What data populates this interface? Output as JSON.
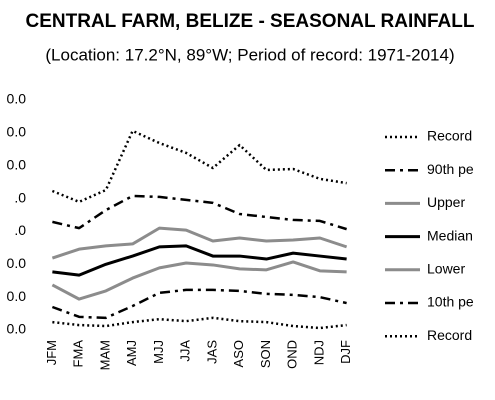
{
  "chart_data": {
    "type": "line",
    "title": "CENTRAL FARM, BELIZE - SEASONAL RAINFALL",
    "subtitle": "(Location: 17.2°N, 89°W; Period of record: 1971-2014)",
    "categories": [
      "JFM",
      "FMA",
      "MAM",
      "AMJ",
      "MJJ",
      "JJA",
      "JAS",
      "ASO",
      "SON",
      "OND",
      "NDJ",
      "DJF"
    ],
    "ylim": [
      0,
      7
    ],
    "yticks": [
      {
        "value": 0,
        "label": "0.0"
      },
      {
        "value": 1,
        "label": "0.0"
      },
      {
        "value": 2,
        "label": "0.0"
      },
      {
        "value": 3,
        "label": ".0"
      },
      {
        "value": 4,
        "label": ".0"
      },
      {
        "value": 5,
        "label": "0.0"
      },
      {
        "value": 6,
        "label": "0.0"
      },
      {
        "value": 7,
        "label": "0.0"
      }
    ],
    "series": [
      {
        "name": "Record",
        "color": "#000000",
        "style": "dotted",
        "values": [
          4.23,
          3.9,
          4.26,
          6.06,
          5.69,
          5.39,
          4.93,
          5.63,
          4.87,
          4.9,
          4.6,
          4.47
        ]
      },
      {
        "name": "90th pe",
        "color": "#000000",
        "style": "dashdot",
        "values": [
          3.29,
          3.1,
          3.65,
          4.08,
          4.05,
          3.96,
          3.87,
          3.53,
          3.44,
          3.35,
          3.32,
          3.07
        ]
      },
      {
        "name": "Upper",
        "color": "#8c8c8c",
        "style": "solid",
        "values": [
          2.19,
          2.46,
          2.56,
          2.62,
          3.1,
          3.04,
          2.71,
          2.8,
          2.71,
          2.74,
          2.8,
          2.53
        ]
      },
      {
        "name": "Median",
        "color": "#000000",
        "style": "solid",
        "values": [
          1.77,
          1.67,
          2.0,
          2.25,
          2.53,
          2.56,
          2.25,
          2.25,
          2.16,
          2.34,
          2.25,
          2.16
        ]
      },
      {
        "name": "Lower",
        "color": "#8c8c8c",
        "style": "solid",
        "values": [
          1.37,
          0.94,
          1.19,
          1.58,
          1.89,
          2.04,
          1.98,
          1.86,
          1.83,
          2.07,
          1.8,
          1.77
        ]
      },
      {
        "name": "10th pe",
        "color": "#000000",
        "style": "dashdot",
        "values": [
          0.7,
          0.4,
          0.37,
          0.73,
          1.13,
          1.22,
          1.22,
          1.19,
          1.1,
          1.07,
          1.0,
          0.82
        ]
      },
      {
        "name": "Record",
        "color": "#000000",
        "style": "dotted",
        "values": [
          0.24,
          0.15,
          0.12,
          0.24,
          0.33,
          0.27,
          0.37,
          0.27,
          0.24,
          0.12,
          0.06,
          0.15
        ]
      }
    ]
  }
}
